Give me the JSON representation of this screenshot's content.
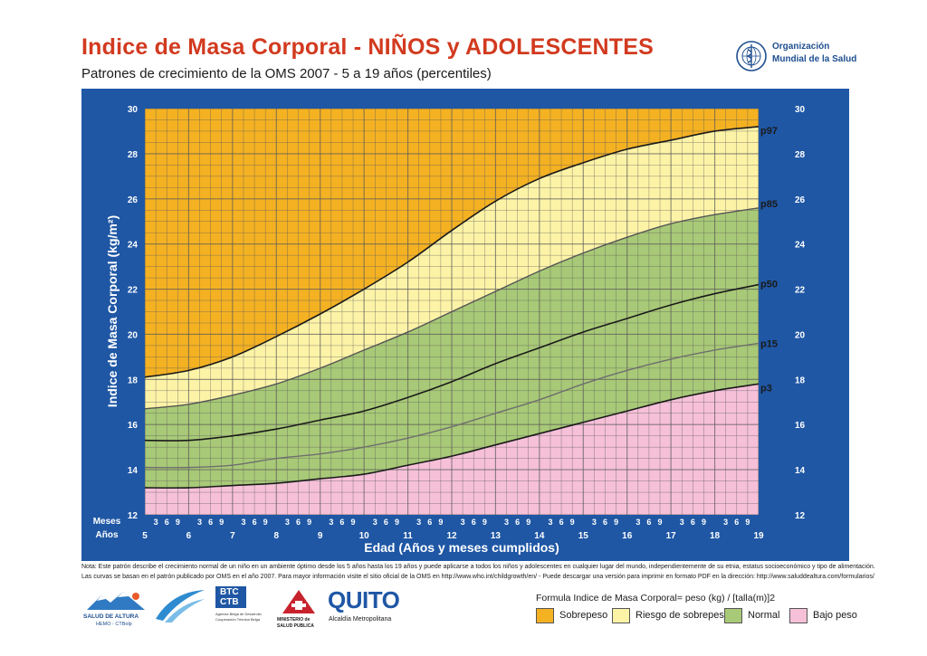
{
  "header": {
    "title": "Indice de Masa Corporal - NIÑOS y  ADOLESCENTES",
    "subtitle": "Patrones de crecimiento de la OMS 2007 - 5 a 19 años (percentiles)",
    "org_line1": "Organización",
    "org_line2": "Mundial de la Salud"
  },
  "colors": {
    "frame": "#1f57a5",
    "sobrepeso": "#f4b122",
    "riesgo": "#fdf3a7",
    "normal": "#a8c977",
    "bajo": "#f6c0d8",
    "title": "#d23a1f"
  },
  "chart_data": {
    "type": "area",
    "x": [
      5,
      6,
      7,
      8,
      9,
      10,
      11,
      12,
      13,
      14,
      15,
      16,
      17,
      18,
      19
    ],
    "xlabel": "Edad (Años y meses cumplidos)",
    "ylabel": "Indice de Masa Corporal (kg/m²)",
    "xlim": [
      5,
      19
    ],
    "ylim": [
      12,
      30
    ],
    "y_ticks": [
      12,
      14,
      16,
      18,
      20,
      22,
      24,
      26,
      28,
      30
    ],
    "x_ticks_years": [
      "5",
      "6",
      "7",
      "8",
      "9",
      "10",
      "11",
      "12",
      "13",
      "14",
      "15",
      "16",
      "17",
      "18",
      "19"
    ],
    "x_ticks_months": [
      "3",
      "6",
      "9"
    ],
    "row_label_months": "Meses",
    "row_label_years": "Años",
    "series": [
      {
        "name": "p97",
        "values": [
          18.1,
          18.4,
          19.0,
          19.9,
          20.9,
          22.0,
          23.2,
          24.6,
          25.9,
          26.9,
          27.6,
          28.2,
          28.6,
          29.0,
          29.2
        ]
      },
      {
        "name": "p85",
        "values": [
          16.7,
          16.9,
          17.3,
          17.8,
          18.5,
          19.3,
          20.1,
          21.0,
          21.9,
          22.8,
          23.6,
          24.3,
          24.9,
          25.3,
          25.6
        ]
      },
      {
        "name": "p50",
        "values": [
          15.3,
          15.3,
          15.5,
          15.8,
          16.2,
          16.6,
          17.2,
          17.9,
          18.7,
          19.4,
          20.1,
          20.7,
          21.3,
          21.8,
          22.2
        ]
      },
      {
        "name": "p15",
        "values": [
          14.1,
          14.1,
          14.2,
          14.5,
          14.7,
          15.0,
          15.4,
          15.9,
          16.5,
          17.1,
          17.8,
          18.4,
          18.9,
          19.3,
          19.6
        ]
      },
      {
        "name": "p3",
        "values": [
          13.2,
          13.2,
          13.3,
          13.4,
          13.6,
          13.8,
          14.2,
          14.6,
          15.1,
          15.6,
          16.1,
          16.6,
          17.1,
          17.5,
          17.8
        ]
      }
    ],
    "zones": [
      "Sobrepeso",
      "Riesgo de sobrepeso",
      "Normal",
      "Bajo peso"
    ],
    "grid": true
  },
  "notes": {
    "line1": "Nota: Este patrón describe el crecimiento normal de un niño en un ambiente óptimo desde los 5 años hasta los 19 años y puede aplicarse a todos los niños y adolescentes en cualquier lugar del mundo, independientemente de su etnia, estatus socioeconómico y tipo de alimentación.",
    "line2": "Las curvas se basan en el patrón publicado por OMS en el año 2007. Para mayor información visite el sitio oficial de la OMS en http://www.who.int/childgrowth/en/ - Puede descargar una versión para imprimir en formato PDF en la dirección: http://www.saluddealtura.com/formularios/"
  },
  "formula": "Formula Indice de Masa Corporal= peso (kg) / [talla(m)]2",
  "legend": [
    {
      "label": "Sobrepeso",
      "color": "#f4b122"
    },
    {
      "label": "Riesgo de sobrepeso",
      "color": "#fdf3a7"
    },
    {
      "label": "Normal",
      "color": "#a8c977"
    },
    {
      "label": "Bajo peso",
      "color": "#f6c0d8"
    }
  ],
  "logos": {
    "salud_altura": "SALUD DE ALTURA",
    "salud_altura_sub": "HEMO - CTBolp",
    "btc1": "BTC",
    "btc2": "CTB",
    "btc_sub1": "Agencia Belga de Desarrollo",
    "btc_sub2": "Cooperación Técnica Belga",
    "ministerio1": "MINISTERIO de",
    "ministerio2": "SALUD PUBLICA",
    "quito": "QUITO",
    "quito_sub": "Alcaldía Metropolitana"
  }
}
